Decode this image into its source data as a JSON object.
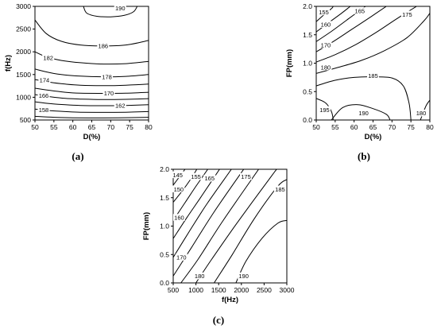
{
  "chart_data": [
    {
      "id": "a",
      "type": "contour",
      "caption": "(a)",
      "xlabel": "D(%)",
      "ylabel": "f(Hz)",
      "xlim": [
        50,
        80
      ],
      "ylim": [
        500,
        3000
      ],
      "xticks": [
        50,
        55,
        60,
        65,
        70,
        75,
        80
      ],
      "yticks": [
        500,
        1000,
        1500,
        2000,
        2500,
        3000
      ],
      "contours": [
        {
          "level": "190",
          "points": [
            [
              62.8,
              3000
            ],
            [
              63.7,
              2850
            ],
            [
              66.5,
              2780
            ],
            [
              70,
              2770
            ],
            [
              73.5,
              2800
            ],
            [
              76.0,
              2880
            ],
            [
              77.0,
              3000
            ]
          ],
          "label_at": [
            72.5,
            2960
          ]
        },
        {
          "level": "186",
          "points": [
            [
              50,
              2700
            ],
            [
              53,
              2400
            ],
            [
              57,
              2230
            ],
            [
              62,
              2150
            ],
            [
              68,
              2130
            ],
            [
              74,
              2150
            ],
            [
              80,
              2250
            ]
          ],
          "label_at": [
            68,
            2130
          ]
        },
        {
          "level": "182",
          "points": [
            [
              50,
              2000
            ],
            [
              53,
              1890
            ],
            [
              57,
              1810
            ],
            [
              62,
              1760
            ],
            [
              68,
              1730
            ],
            [
              74,
              1740
            ],
            [
              80,
              1790
            ]
          ],
          "label_at": [
            53.5,
            1870
          ]
        },
        {
          "level": "178",
          "points": [
            [
              50,
              1620
            ],
            [
              54,
              1540
            ],
            [
              58,
              1490
            ],
            [
              62,
              1465
            ],
            [
              68,
              1450
            ],
            [
              74,
              1460
            ],
            [
              80,
              1500
            ]
          ],
          "label_at": [
            69,
            1450
          ]
        },
        {
          "level": "174",
          "points": [
            [
              50,
              1390
            ],
            [
              54,
              1330
            ],
            [
              58,
              1290
            ],
            [
              62,
              1265
            ],
            [
              68,
              1255
            ],
            [
              74,
              1265
            ],
            [
              80,
              1290
            ]
          ],
          "label_at": [
            52.5,
            1380
          ]
        },
        {
          "level": "170",
          "points": [
            [
              50,
              1200
            ],
            [
              54,
              1150
            ],
            [
              58,
              1110
            ],
            [
              62,
              1090
            ],
            [
              68,
              1085
            ],
            [
              74,
              1090
            ],
            [
              80,
              1110
            ]
          ],
          "label_at": [
            69.5,
            1090
          ]
        },
        {
          "level": "166",
          "points": [
            [
              50,
              1060
            ],
            [
              54,
              1010
            ],
            [
              58,
              975
            ],
            [
              62,
              960
            ],
            [
              68,
              950
            ],
            [
              74,
              955
            ],
            [
              80,
              970
            ]
          ],
          "label_at": [
            52.3,
            1040
          ]
        },
        {
          "level": "162",
          "points": [
            [
              50,
              900
            ],
            [
              54,
              860
            ],
            [
              58,
              835
            ],
            [
              62,
              820
            ],
            [
              68,
              815
            ],
            [
              74,
              820
            ],
            [
              80,
              835
            ]
          ],
          "label_at": [
            72.5,
            820
          ]
        },
        {
          "level": "158",
          "points": [
            [
              50,
              740
            ],
            [
              54,
              705
            ],
            [
              58,
              685
            ],
            [
              62,
              672
            ],
            [
              68,
              668
            ],
            [
              74,
              672
            ],
            [
              80,
              685
            ]
          ],
          "label_at": [
            52.3,
            720
          ]
        },
        {
          "level": "",
          "points": [
            [
              50,
              580
            ],
            [
              55,
              560
            ],
            [
              60,
              548
            ],
            [
              66,
              545
            ],
            [
              72,
              548
            ],
            [
              80,
              560
            ]
          ],
          "label_at": null
        }
      ]
    },
    {
      "id": "b",
      "type": "contour",
      "caption": "(b)",
      "xlabel": "D(%)",
      "ylabel": "FP(mm)",
      "xlim": [
        50,
        80
      ],
      "ylim": [
        0.0,
        2.0
      ],
      "xticks": [
        50,
        55,
        60,
        65,
        70,
        75,
        80
      ],
      "yticks": [
        "0.0",
        "0.5",
        "1.0",
        "1.5",
        "2.0"
      ],
      "contours": [
        {
          "level": "155",
          "points": [
            [
              50,
              1.73
            ],
            [
              52,
              1.85
            ],
            [
              54,
              1.96
            ],
            [
              54.5,
              2.0
            ]
          ],
          "label_at": [
            52,
            1.9
          ]
        },
        {
          "level": "160",
          "points": [
            [
              50,
              1.55
            ],
            [
              53,
              1.7
            ],
            [
              56.5,
              1.87
            ],
            [
              59,
              2.0
            ]
          ],
          "label_at": [
            52.5,
            1.68
          ]
        },
        {
          "level": "165",
          "points": [
            [
              50,
              1.38
            ],
            [
              54,
              1.56
            ],
            [
              58.5,
              1.78
            ],
            [
              63,
              2.0
            ]
          ],
          "label_at": [
            61.5,
            1.92
          ]
        },
        {
          "level": "170",
          "points": [
            [
              50,
              1.2
            ],
            [
              54.5,
              1.38
            ],
            [
              59.5,
              1.6
            ],
            [
              64.5,
              1.82
            ],
            [
              68.5,
              2.0
            ]
          ],
          "label_at": [
            52.5,
            1.32
          ]
        },
        {
          "level": "175",
          "points": [
            [
              50,
              1.02
            ],
            [
              55,
              1.15
            ],
            [
              60.5,
              1.33
            ],
            [
              66,
              1.55
            ],
            [
              71,
              1.77
            ],
            [
              76.5,
              2.0
            ]
          ],
          "label_at": [
            74,
            1.86
          ]
        },
        {
          "level": "180",
          "points": [
            [
              50,
              0.82
            ],
            [
              56,
              0.93
            ],
            [
              62,
              1.05
            ],
            [
              68,
              1.22
            ],
            [
              74,
              1.45
            ],
            [
              78.5,
              1.75
            ],
            [
              80,
              1.88
            ]
          ],
          "label_at": [
            52.5,
            0.93
          ]
        },
        {
          "level": "185",
          "points": [
            [
              50,
              0.6
            ],
            [
              55,
              0.7
            ],
            [
              60,
              0.75
            ],
            [
              65,
              0.76
            ],
            [
              70,
              0.74
            ],
            [
              73,
              0.6
            ],
            [
              74.5,
              0.3
            ],
            [
              75,
              0.0
            ]
          ],
          "label_at": [
            65,
            0.78
          ]
        },
        {
          "level": "190",
          "points": [
            [
              54,
              0.0
            ],
            [
              57,
              0.22
            ],
            [
              61,
              0.27
            ],
            [
              65,
              0.2
            ],
            [
              68.5,
              0.1
            ],
            [
              69.5,
              0.0
            ]
          ],
          "label_at": [
            62.5,
            0.12
          ]
        },
        {
          "level": "195",
          "points": [
            [
              50,
              0.38
            ],
            [
              52.5,
              0.3
            ],
            [
              54,
              0.15
            ],
            [
              54.5,
              0.0
            ]
          ],
          "label_at": [
            52.2,
            0.18
          ]
        },
        {
          "level": "180",
          "points": [
            [
              77.5,
              0.0
            ],
            [
              79,
              0.25
            ],
            [
              80,
              0.35
            ]
          ],
          "label_at": [
            77.7,
            0.12
          ]
        }
      ]
    },
    {
      "id": "c",
      "type": "contour",
      "caption": "(c)",
      "xlabel": "f(Hz)",
      "ylabel": "FP(mm)",
      "xlim": [
        500,
        3000
      ],
      "ylim": [
        0.0,
        2.0
      ],
      "xticks": [
        500,
        1000,
        1500,
        2000,
        2500,
        3000
      ],
      "yticks": [
        "0.0",
        "0.5",
        "1.0",
        "1.5",
        "2.0"
      ],
      "contours": [
        {
          "level": "145",
          "points": [
            [
              500,
              1.72
            ],
            [
              620,
              1.85
            ],
            [
              760,
              2.0
            ]
          ],
          "label_at": [
            600,
            1.9
          ]
        },
        {
          "level": "150",
          "points": [
            [
              500,
              1.42
            ],
            [
              700,
              1.62
            ],
            [
              880,
              1.82
            ],
            [
              1020,
              2.0
            ]
          ],
          "label_at": [
            620,
            1.65
          ]
        },
        {
          "level": "155",
          "points": [
            [
              500,
              1.1
            ],
            [
              750,
              1.4
            ],
            [
              1000,
              1.7
            ],
            [
              1260,
              2.0
            ]
          ],
          "label_at": [
            1000,
            1.87
          ]
        },
        {
          "level": "160",
          "points": [
            [
              500,
              0.78
            ],
            [
              800,
              1.15
            ],
            [
              1100,
              1.5
            ],
            [
              1520,
              2.0
            ]
          ],
          "label_at": [
            630,
            1.15
          ]
        },
        {
          "level": "165",
          "points": [
            [
              500,
              0.45
            ],
            [
              850,
              0.9
            ],
            [
              1250,
              1.4
            ],
            [
              1780,
              2.0
            ]
          ],
          "label_at": [
            1300,
            1.84
          ]
        },
        {
          "level": "170",
          "points": [
            [
              500,
              0.12
            ],
            [
              900,
              0.62
            ],
            [
              1400,
              1.25
            ],
            [
              2050,
              2.0
            ]
          ],
          "label_at": [
            680,
            0.45
          ]
        },
        {
          "level": "175",
          "points": [
            [
              670,
              0.0
            ],
            [
              1050,
              0.42
            ],
            [
              1600,
              1.1
            ],
            [
              2380,
              2.0
            ]
          ],
          "label_at": [
            2100,
            1.87
          ]
        },
        {
          "level": "180",
          "points": [
            [
              1000,
              0.0
            ],
            [
              1350,
              0.42
            ],
            [
              1900,
              1.05
            ],
            [
              2680,
              1.9
            ],
            [
              2780,
              2.0
            ]
          ],
          "label_at": [
            1080,
            0.12
          ]
        },
        {
          "level": "185",
          "points": [
            [
              1400,
              0.0
            ],
            [
              1800,
              0.5
            ],
            [
              2300,
              1.15
            ],
            [
              2800,
              1.7
            ],
            [
              3000,
              1.82
            ]
          ],
          "label_at": [
            2850,
            1.65
          ]
        },
        {
          "level": "190",
          "points": [
            [
              1880,
              0.0
            ],
            [
              2100,
              0.38
            ],
            [
              2450,
              0.78
            ],
            [
              2800,
              1.05
            ],
            [
              3000,
              1.1
            ]
          ],
          "label_at": [
            2050,
            0.12
          ]
        }
      ]
    }
  ]
}
